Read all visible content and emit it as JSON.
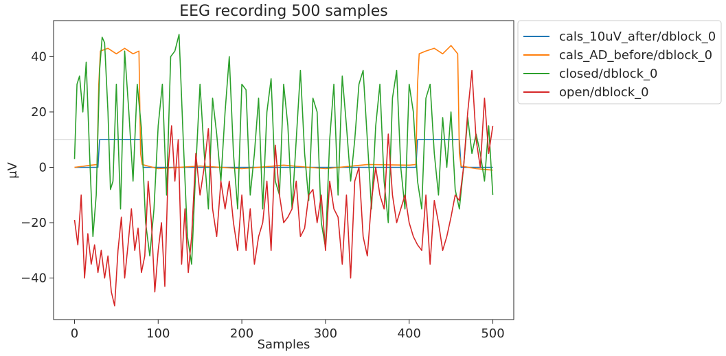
{
  "chart_data": {
    "type": "line",
    "title": "EEG recording 500 samples",
    "xlabel": "Samples",
    "ylabel": "μV",
    "xlim": [
      -25,
      525
    ],
    "ylim": [
      -55,
      53
    ],
    "xticks": [
      0,
      100,
      200,
      300,
      400,
      500
    ],
    "xtick_labels": [
      "0",
      "100",
      "200",
      "300",
      "400",
      "500"
    ],
    "yticks": [
      -40,
      -20,
      0,
      20,
      40
    ],
    "ytick_labels": [
      "−40",
      "−20",
      "0",
      "20",
      "40"
    ],
    "reference_line": 10,
    "grid": false,
    "legend_position": "outside-top-right",
    "series": [
      {
        "name": "cals_10uV_after/dblock_0",
        "color": "#1f77b4",
        "x": [
          0,
          28,
          30,
          80,
          82,
          408,
          410,
          460,
          462,
          500
        ],
        "y": [
          0,
          0,
          10,
          10,
          0,
          0,
          10,
          10,
          0,
          0
        ]
      },
      {
        "name": "cals_AD_before/dblock_0",
        "color": "#ff7f0e",
        "x": [
          0,
          20,
          27,
          29,
          31,
          40,
          50,
          60,
          70,
          77,
          79,
          81,
          100,
          150,
          200,
          250,
          300,
          350,
          400,
          408,
          410,
          412,
          420,
          430,
          440,
          450,
          458,
          460,
          462,
          480,
          500
        ],
        "y": [
          0,
          0.8,
          1,
          30,
          42,
          43,
          41,
          43,
          41,
          42,
          5,
          1,
          -0.5,
          0.5,
          -0.5,
          0.8,
          -0.5,
          1,
          0.8,
          1,
          30,
          41,
          42,
          43,
          41,
          44,
          41,
          5,
          0.5,
          -0.5,
          -1
        ]
      },
      {
        "name": "closed/dblock_0",
        "color": "#2ca02c",
        "x": [
          0,
          3,
          6,
          10,
          14,
          18,
          22,
          26,
          30,
          33,
          36,
          40,
          43,
          46,
          50,
          55,
          60,
          65,
          70,
          75,
          80,
          85,
          90,
          95,
          100,
          105,
          110,
          115,
          120,
          125,
          130,
          135,
          140,
          145,
          150,
          155,
          160,
          165,
          170,
          175,
          180,
          185,
          190,
          195,
          200,
          205,
          210,
          215,
          220,
          225,
          230,
          235,
          240,
          245,
          250,
          255,
          260,
          265,
          270,
          275,
          280,
          285,
          290,
          295,
          300,
          305,
          310,
          315,
          320,
          325,
          330,
          335,
          340,
          345,
          350,
          355,
          360,
          365,
          370,
          375,
          380,
          385,
          390,
          395,
          400,
          405,
          410,
          415,
          420,
          425,
          430,
          435,
          440,
          445,
          450,
          455,
          460,
          465,
          470,
          475,
          480,
          485,
          490,
          495,
          500
        ],
        "y": [
          3,
          30,
          33,
          20,
          38,
          5,
          -25,
          -10,
          35,
          47,
          45,
          20,
          -8,
          -5,
          30,
          -15,
          42,
          20,
          -5,
          30,
          14,
          -20,
          -32,
          -15,
          15,
          30,
          -10,
          40,
          42,
          48,
          10,
          -25,
          -35,
          0,
          30,
          5,
          -15,
          25,
          12,
          -5,
          20,
          40,
          5,
          -15,
          30,
          28,
          -10,
          5,
          25,
          -15,
          20,
          32,
          -5,
          -10,
          30,
          15,
          -15,
          10,
          35,
          5,
          -12,
          25,
          20,
          -20,
          -29,
          10,
          30,
          -10,
          33,
          15,
          -5,
          10,
          30,
          35,
          10,
          -15,
          15,
          30,
          -5,
          -20,
          25,
          35,
          0,
          -15,
          30,
          20,
          -5,
          -15,
          25,
          30,
          5,
          -10,
          18,
          0,
          20,
          -8,
          -15,
          0,
          18,
          5,
          12,
          5,
          -5,
          15,
          -10
        ]
      },
      {
        "name": "open/dblock_0",
        "color": "#d62728",
        "x": [
          0,
          4,
          8,
          12,
          16,
          20,
          24,
          28,
          32,
          36,
          40,
          44,
          48,
          52,
          56,
          60,
          64,
          68,
          72,
          76,
          80,
          84,
          88,
          92,
          96,
          100,
          104,
          108,
          112,
          116,
          120,
          124,
          128,
          132,
          136,
          140,
          145,
          150,
          155,
          160,
          165,
          170,
          175,
          180,
          185,
          190,
          195,
          200,
          205,
          210,
          215,
          220,
          225,
          230,
          235,
          240,
          245,
          250,
          255,
          260,
          265,
          270,
          275,
          280,
          285,
          290,
          295,
          300,
          305,
          310,
          315,
          320,
          325,
          330,
          335,
          340,
          345,
          350,
          355,
          360,
          365,
          370,
          375,
          380,
          385,
          390,
          395,
          400,
          405,
          410,
          415,
          420,
          425,
          430,
          435,
          440,
          445,
          450,
          455,
          460,
          465,
          470,
          475,
          480,
          485,
          490,
          495,
          500
        ],
        "y": [
          -19,
          -28,
          -10,
          -40,
          -24,
          -35,
          -28,
          -38,
          -30,
          -40,
          -32,
          -45,
          -50,
          -30,
          -18,
          -40,
          -28,
          -15,
          -30,
          -22,
          -38,
          -32,
          -5,
          -20,
          -45,
          -30,
          -20,
          -43,
          0,
          15,
          -5,
          10,
          -35,
          -15,
          -38,
          -25,
          5,
          -10,
          0,
          14,
          -15,
          -25,
          -5,
          -15,
          -5,
          -20,
          -30,
          -10,
          -30,
          -15,
          -35,
          -25,
          -20,
          -5,
          -30,
          8,
          -10,
          -20,
          -18,
          -15,
          -5,
          -25,
          -22,
          -10,
          -8,
          -20,
          -10,
          -30,
          -5,
          -15,
          -18,
          -35,
          -10,
          -40,
          -5,
          0,
          -25,
          -32,
          -12,
          0,
          -10,
          -15,
          12,
          -10,
          -20,
          -15,
          -10,
          -20,
          -25,
          -28,
          -30,
          -10,
          -35,
          -12,
          -20,
          -30,
          -25,
          -18,
          -10,
          -12,
          0,
          20,
          35,
          10,
          0,
          25,
          5,
          15
        ]
      }
    ]
  }
}
